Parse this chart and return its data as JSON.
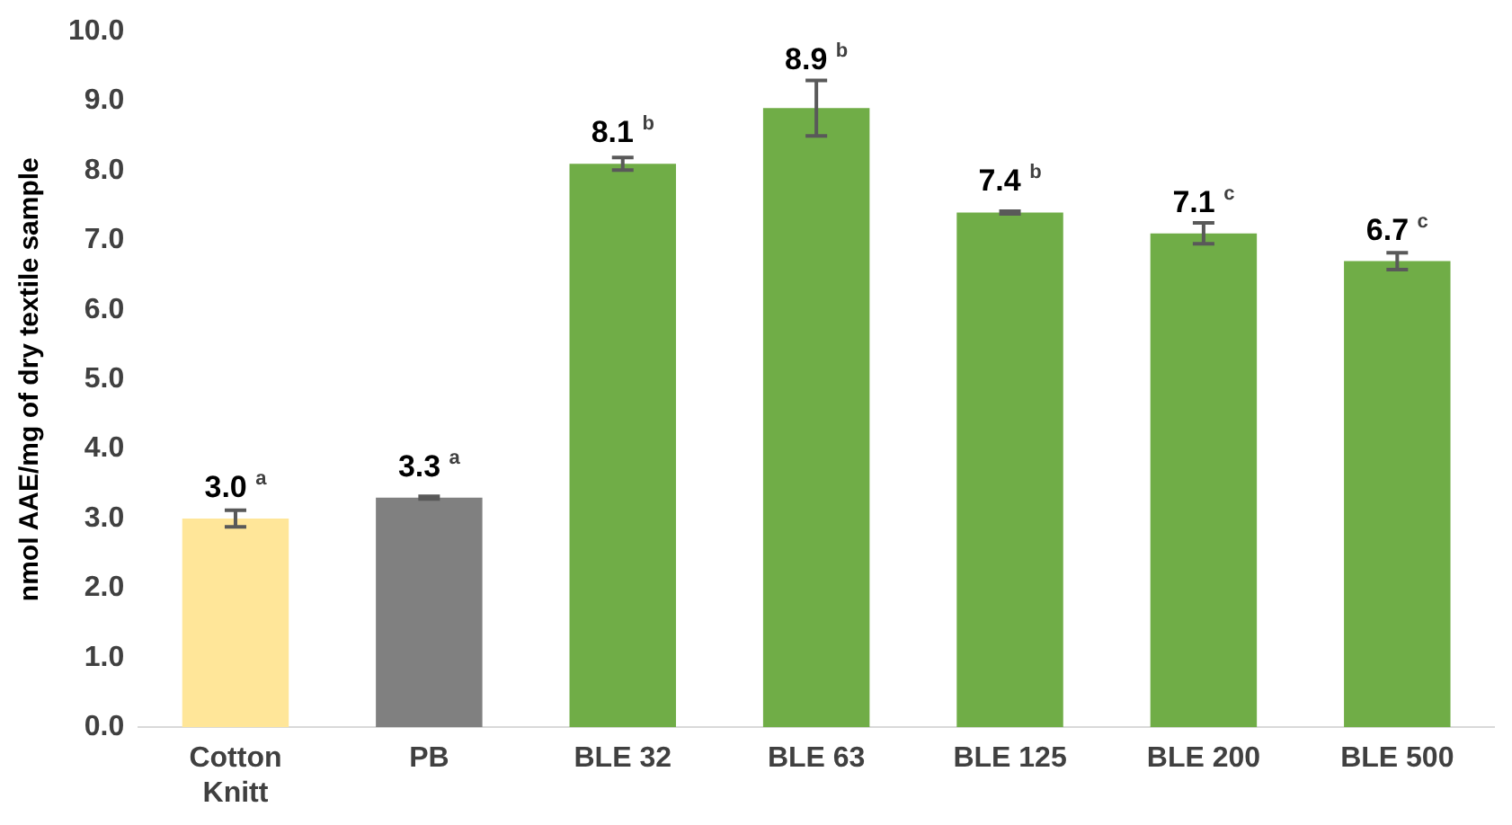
{
  "chart_data": {
    "type": "bar",
    "ylabel": "nmol AAE/mg of dry textile sample",
    "categories": [
      "Cotton Knitt",
      "PB",
      "BLE 32",
      "BLE 63",
      "BLE 125",
      "BLE 200",
      "BLE 500"
    ],
    "values": [
      3.0,
      3.3,
      8.1,
      8.9,
      7.4,
      7.1,
      6.7
    ],
    "colors": [
      "#ffe699",
      "#808080",
      "#70ad47",
      "#70ad47",
      "#70ad47",
      "#70ad47",
      "#70ad47"
    ],
    "errors": [
      0.12,
      0.02,
      0.09,
      0.4,
      0.02,
      0.15,
      0.12
    ],
    "value_labels": [
      "3.0 $^{a}$",
      "3.3 $^{a}$",
      "8.1 $^{b}$",
      "8.9 $^{b}$",
      "7.4 $^{b}$",
      "7.1 $^{c}$",
      "6.7 $^{c}$"
    ],
    "ylim": [
      0,
      10
    ],
    "yticks": [
      {
        "value": 0,
        "label": "0.0"
      },
      {
        "value": 1,
        "label": "1.0"
      },
      {
        "value": 2,
        "label": "2.0"
      },
      {
        "value": 3,
        "label": "3.0"
      },
      {
        "value": 4,
        "label": "4.0"
      },
      {
        "value": 5,
        "label": "5.0"
      },
      {
        "value": 6,
        "label": "6.0"
      },
      {
        "value": 7,
        "label": "7.0"
      },
      {
        "value": 8,
        "label": "8.0"
      },
      {
        "value": 9,
        "label": "9.0"
      },
      {
        "value": 10,
        "label": "10.0"
      }
    ],
    "grid": false,
    "legend": false
  }
}
